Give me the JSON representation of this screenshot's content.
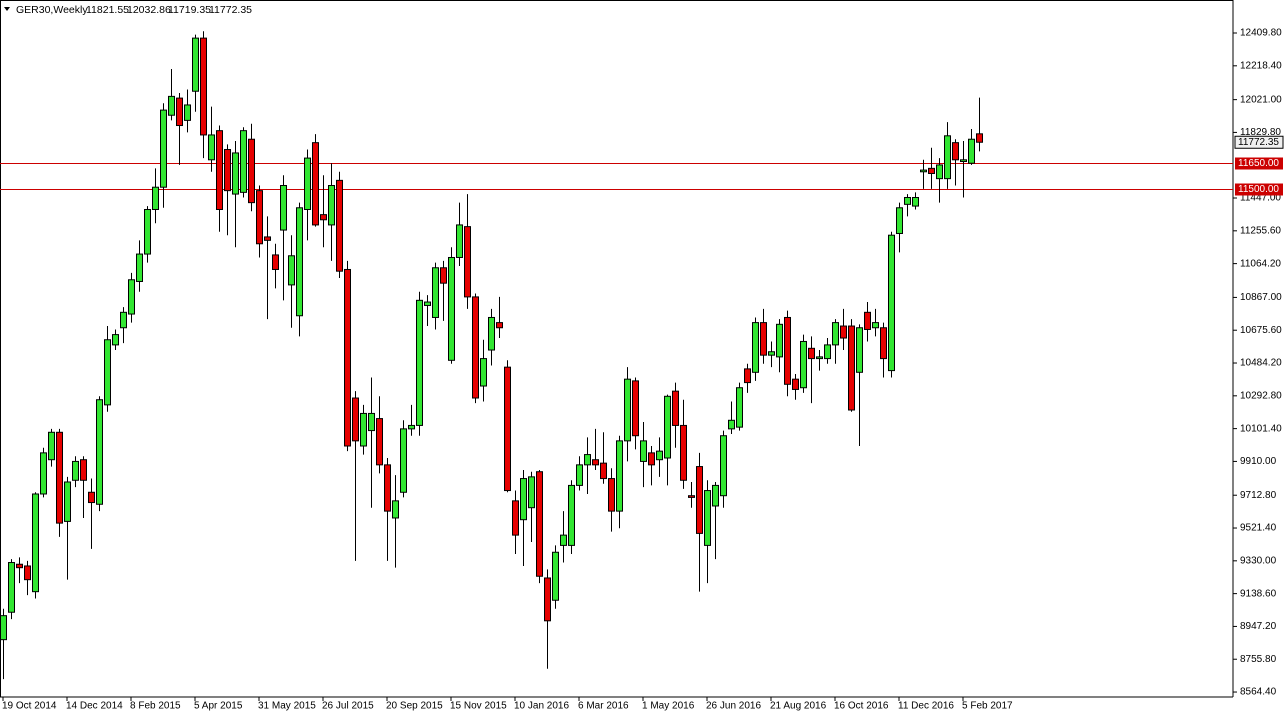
{
  "chart_data": {
    "type": "candlestick",
    "symbol": "GER30,Weekly",
    "categories": [
      "19 Oct 2014",
      null,
      null,
      null,
      null,
      null,
      null,
      null,
      "14 Dec 2014",
      null,
      null,
      null,
      null,
      null,
      null,
      null,
      "8 Feb 2015",
      null,
      null,
      null,
      null,
      null,
      null,
      null,
      "5 Apr 2015",
      null,
      null,
      null,
      null,
      null,
      null,
      null,
      "31 May 2015",
      null,
      null,
      null,
      null,
      null,
      null,
      null,
      "26 Jul 2015",
      null,
      null,
      null,
      null,
      null,
      null,
      null,
      "20 Sep 2015",
      null,
      null,
      null,
      null,
      null,
      null,
      null,
      "15 Nov 2015",
      null,
      null,
      null,
      null,
      null,
      null,
      null,
      "10 Jan 2016",
      null,
      null,
      null,
      null,
      null,
      null,
      null,
      "6 Mar 2016",
      null,
      null,
      null,
      null,
      null,
      null,
      null,
      "1 May 2016",
      null,
      null,
      null,
      null,
      null,
      null,
      null,
      "26 Jun 2016",
      null,
      null,
      null,
      null,
      null,
      null,
      null,
      "21 Aug 2016",
      null,
      null,
      null,
      null,
      null,
      null,
      null,
      "16 Oct 2016",
      null,
      null,
      null,
      null,
      null,
      null,
      null,
      "11 Dec 2016",
      null,
      null,
      null,
      null,
      null,
      null,
      null,
      "5 Feb 2017",
      null,
      null
    ],
    "open": [
      8870,
      9030,
      9310,
      9300,
      9150,
      9720,
      9920,
      10080,
      9560,
      9800,
      9920,
      9730,
      9660,
      10240,
      10590,
      10690,
      10770,
      10960,
      11120,
      11380,
      11510,
      11930,
      12030,
      11900,
      12070,
      12380,
      11670,
      11840,
      11730,
      11470,
      11480,
      11790,
      11490,
      11220,
      11115,
      11260,
      10940,
      10760,
      11380,
      11770,
      11350,
      11290,
      11550,
      11030,
      10280,
      10000,
      10090,
      10160,
      9890,
      9580,
      9730,
      10100,
      10120,
      10820,
      10750,
      11040,
      10500,
      11100,
      11280,
      10870,
      10350,
      10560,
      10720,
      10460,
      9680,
      9570,
      9640,
      9850,
      9230,
      9100,
      9420,
      9420,
      9770,
      9890,
      9920,
      9900,
      9810,
      9620,
      10030,
      10380,
      9910,
      9960,
      9920,
      9930,
      10320,
      10120,
      9710,
      9880,
      9420,
      9650,
      9710,
      10100,
      10110,
      10450,
      10430,
      10720,
      10530,
      10520,
      10750,
      10390,
      10340,
      10570,
      10510,
      10510,
      10590,
      10700,
      10700,
      10430,
      10780,
      10690,
      10690,
      10440,
      11240,
      11410,
      11400,
      11600,
      11620,
      11560,
      11560,
      11770,
      11660,
      11650,
      11821.55
    ],
    "high": [
      9050,
      9340,
      9350,
      9330,
      9730,
      9990,
      10100,
      10100,
      9820,
      9940,
      9940,
      9810,
      10290,
      10700,
      10680,
      10810,
      11010,
      11200,
      11400,
      11620,
      12000,
      12200,
      12060,
      12080,
      12400,
      12420,
      11980,
      11870,
      11760,
      11780,
      11860,
      11880,
      11520,
      11340,
      11180,
      11580,
      11230,
      11420,
      11730,
      11820,
      11580,
      11650,
      11600,
      11080,
      10320,
      10240,
      10400,
      10290,
      9930,
      9830,
      10150,
      10240,
      10900,
      10880,
      11070,
      11080,
      11160,
      11420,
      11470,
      10890,
      10620,
      10800,
      10870,
      10500,
      9740,
      9860,
      9850,
      9860,
      9280,
      9420,
      9620,
      9800,
      9940,
      10050,
      10100,
      10080,
      9870,
      10060,
      10460,
      10400,
      10140,
      10000,
      10050,
      10300,
      10370,
      10270,
      9790,
      9960,
      9800,
      9790,
      10090,
      10260,
      10370,
      10480,
      10750,
      10800,
      10610,
      10740,
      10790,
      10420,
      10650,
      10640,
      10560,
      10630,
      10740,
      10800,
      10740,
      10710,
      10840,
      10800,
      10720,
      11250,
      11420,
      11470,
      11480,
      11670,
      11740,
      11680,
      11890,
      11790,
      11780,
      11850,
      12032.86
    ],
    "low": [
      8640,
      8990,
      9200,
      9130,
      9110,
      9700,
      9880,
      9470,
      9220,
      9760,
      9580,
      9400,
      9620,
      10200,
      10560,
      10600,
      10720,
      10900,
      11070,
      11300,
      11390,
      11900,
      11640,
      11830,
      11950,
      11680,
      11600,
      11250,
      11230,
      11160,
      11450,
      11370,
      11100,
      10740,
      10920,
      10850,
      10690,
      10640,
      11200,
      11280,
      11160,
      11080,
      10980,
      9970,
      9330,
      9950,
      9640,
      9840,
      9330,
      9290,
      9700,
      10060,
      10060,
      10700,
      10680,
      10730,
      10480,
      11050,
      10800,
      10250,
      10260,
      10470,
      10630,
      9730,
      9370,
      9300,
      9440,
      9200,
      8700,
      9050,
      9320,
      9370,
      9740,
      9720,
      9860,
      9780,
      9500,
      9520,
      9910,
      9980,
      9760,
      9770,
      9820,
      9770,
      9990,
      9750,
      9640,
      9150,
      9200,
      9340,
      9640,
      10070,
      10090,
      10310,
      10380,
      10480,
      10460,
      10430,
      10290,
      10270,
      10310,
      10250,
      10440,
      10480,
      10480,
      10560,
      10200,
      10000,
      10610,
      10640,
      10400,
      10400,
      11130,
      11340,
      11380,
      11500,
      11500,
      11420,
      11500,
      11520,
      11450,
      11640,
      11719.35
    ],
    "close": [
      9010,
      9320,
      9290,
      9220,
      9720,
      9960,
      10080,
      9550,
      9790,
      9910,
      9800,
      9670,
      10270,
      10620,
      10650,
      10780,
      10970,
      11120,
      11380,
      11510,
      11960,
      12040,
      11870,
      11990,
      12380,
      11815,
      11815,
      11380,
      11490,
      11710,
      11840,
      11420,
      11180,
      11200,
      11030,
      11520,
      11110,
      11390,
      11680,
      11290,
      11320,
      11520,
      11020,
      10000,
      10030,
      10190,
      10190,
      9890,
      9620,
      9680,
      10100,
      10120,
      10850,
      10840,
      11040,
      10950,
      11100,
      11290,
      10870,
      10280,
      10510,
      10750,
      10690,
      9740,
      9480,
      9810,
      9820,
      9240,
      8980,
      9380,
      9480,
      9770,
      9890,
      9950,
      9890,
      9810,
      9620,
      10030,
      10390,
      10060,
      10030,
      9890,
      9970,
      10290,
      10120,
      9800,
      9700,
      9490,
      9740,
      9770,
      10060,
      10150,
      10340,
      10370,
      10720,
      10530,
      10550,
      10710,
      10360,
      10330,
      10610,
      10510,
      10520,
      10590,
      10720,
      10630,
      10210,
      10690,
      10680,
      10720,
      10510,
      11230,
      11390,
      11450,
      11450,
      11610,
      11590,
      11640,
      11810,
      11670,
      11670,
      11790,
      11772.35
    ],
    "up_color": "#32e632",
    "down_color": "#e60000",
    "ylim": [
      8535.4,
      12602.4
    ],
    "yticks": [
      {
        "value": 12409.8,
        "label": "12409.80"
      },
      {
        "value": 12218.4,
        "label": "12218.40"
      },
      {
        "value": 12021,
        "label": "12021.00"
      },
      {
        "value": 11829.8,
        "label": "11829.80"
      },
      {
        "value": 11447,
        "label": "11447.00"
      },
      {
        "value": 11255.6,
        "label": "11255.60"
      },
      {
        "value": 11064.2,
        "label": "11064.20"
      },
      {
        "value": 10867,
        "label": "10867.00"
      },
      {
        "value": 10675.6,
        "label": "10675.60"
      },
      {
        "value": 10484.2,
        "label": "10484.20"
      },
      {
        "value": 10292.8,
        "label": "10292.80"
      },
      {
        "value": 10101.4,
        "label": "10101.40"
      },
      {
        "value": 9910,
        "label": "9910.00"
      },
      {
        "value": 9712.8,
        "label": "9712.80"
      },
      {
        "value": 9521.4,
        "label": "9521.40"
      },
      {
        "value": 9330,
        "label": "9330.00"
      },
      {
        "value": 9138.6,
        "label": "9138.60"
      },
      {
        "value": 8947.2,
        "label": "8947.20"
      },
      {
        "value": 8755.8,
        "label": "8755.80"
      },
      {
        "value": 8564.4,
        "label": "8564.40"
      }
    ],
    "levels": [
      {
        "value": 11650,
        "label": "11650.00"
      },
      {
        "value": 11500,
        "label": "11500.00"
      }
    ],
    "level_color": "#cc0000",
    "grid": false
  }
}
